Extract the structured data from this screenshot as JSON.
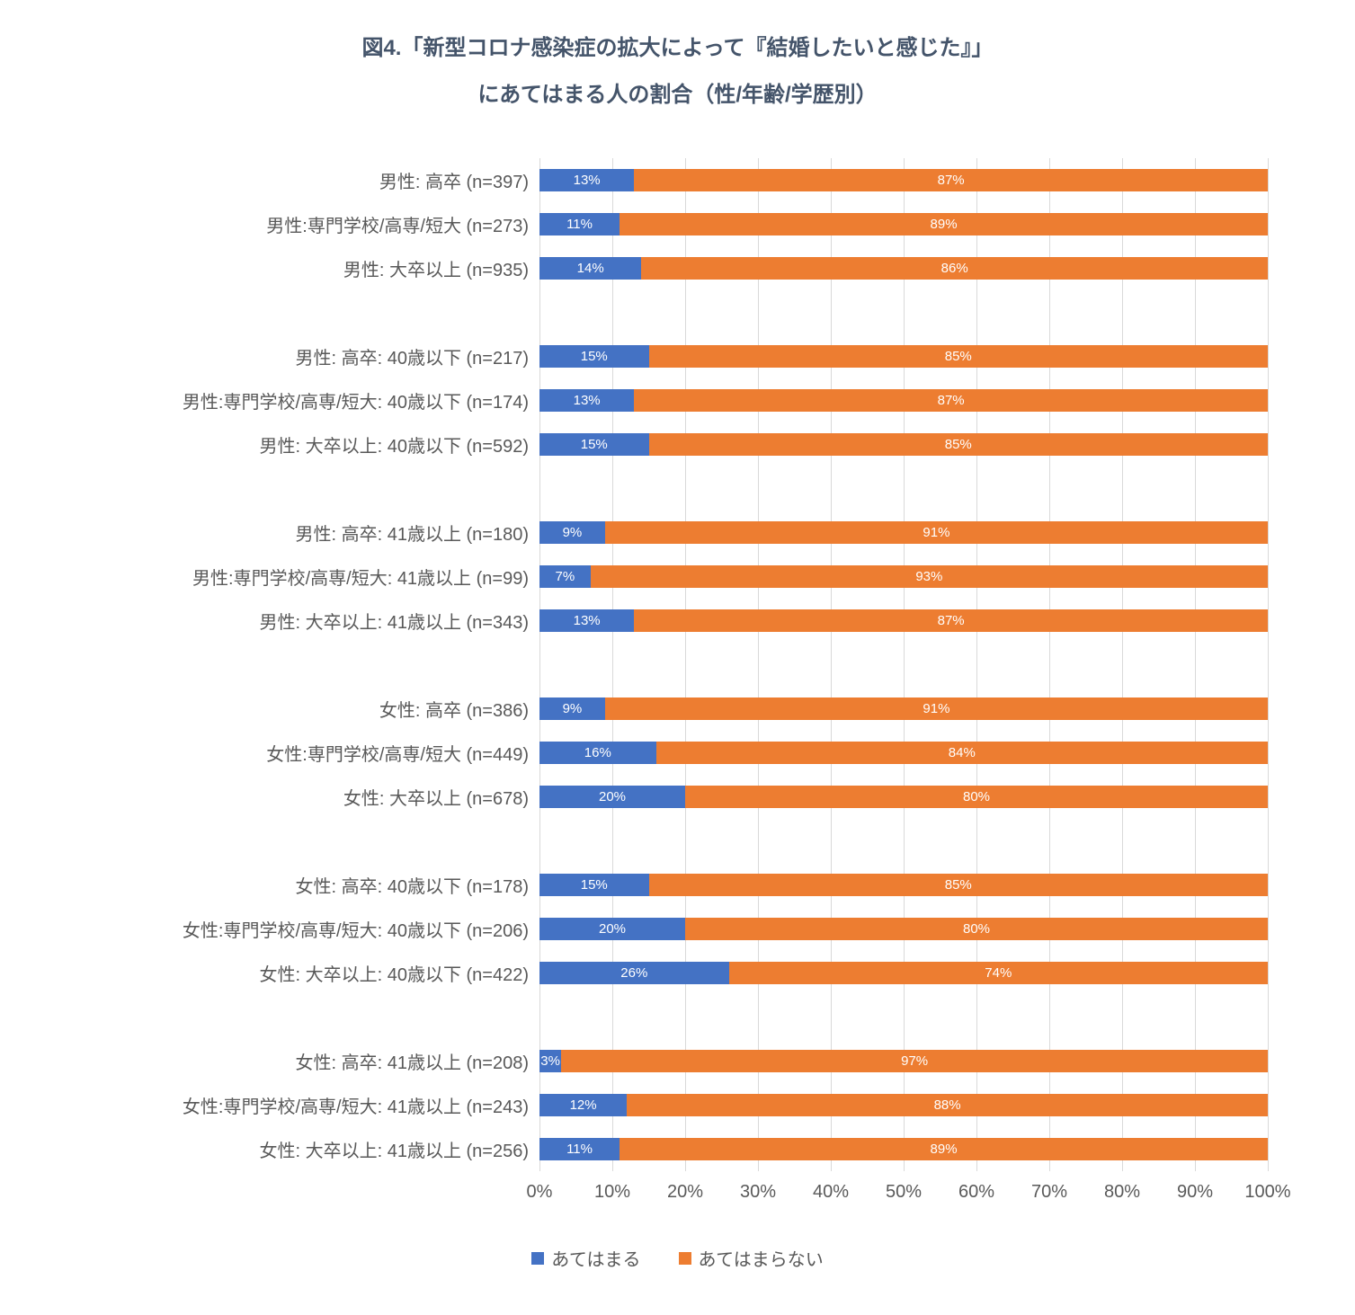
{
  "title": {
    "line1": "図4.「新型コロナ感染症の拡大によって『結婚したいと感じた』」",
    "line2": "にあてはまる人の割合（性/年齢/学歴別）"
  },
  "chart_data": {
    "type": "bar",
    "orientation": "horizontal",
    "stacked": true,
    "percent_total": 100,
    "series": [
      "あてはまる",
      "あてはまらない"
    ],
    "colors": [
      "#4472C4",
      "#ED7D31"
    ],
    "xlim": [
      0,
      100
    ],
    "x_ticks": [
      "0%",
      "10%",
      "20%",
      "30%",
      "40%",
      "50%",
      "60%",
      "70%",
      "80%",
      "90%",
      "100%"
    ],
    "grid": true,
    "legend_position": "bottom",
    "groups": [
      [
        {
          "label": "男性: 高卒 (n=397)",
          "values": [
            13,
            87
          ]
        },
        {
          "label": "男性:専門学校/高専/短大 (n=273)",
          "values": [
            11,
            89
          ]
        },
        {
          "label": "男性: 大卒以上 (n=935)",
          "values": [
            14,
            86
          ]
        }
      ],
      [
        {
          "label": "男性: 高卒: 40歳以下 (n=217)",
          "values": [
            15,
            85
          ]
        },
        {
          "label": "男性:専門学校/高専/短大: 40歳以下 (n=174)",
          "values": [
            13,
            87
          ]
        },
        {
          "label": "男性: 大卒以上: 40歳以下 (n=592)",
          "values": [
            15,
            85
          ]
        }
      ],
      [
        {
          "label": "男性: 高卒: 41歳以上 (n=180)",
          "values": [
            9,
            91
          ]
        },
        {
          "label": "男性:専門学校/高専/短大: 41歳以上 (n=99)",
          "values": [
            7,
            93
          ]
        },
        {
          "label": "男性: 大卒以上: 41歳以上 (n=343)",
          "values": [
            13,
            87
          ]
        }
      ],
      [
        {
          "label": "女性: 高卒 (n=386)",
          "values": [
            9,
            91
          ]
        },
        {
          "label": "女性:専門学校/高専/短大 (n=449)",
          "values": [
            16,
            84
          ]
        },
        {
          "label": "女性: 大卒以上 (n=678)",
          "values": [
            20,
            80
          ]
        }
      ],
      [
        {
          "label": "女性: 高卒: 40歳以下 (n=178)",
          "values": [
            15,
            85
          ]
        },
        {
          "label": "女性:専門学校/高専/短大: 40歳以下 (n=206)",
          "values": [
            20,
            80
          ]
        },
        {
          "label": "女性: 大卒以上: 40歳以下 (n=422)",
          "values": [
            26,
            74
          ]
        }
      ],
      [
        {
          "label": "女性: 高卒: 41歳以上 (n=208)",
          "values": [
            3,
            97
          ]
        },
        {
          "label": "女性:専門学校/高専/短大: 41歳以上 (n=243)",
          "values": [
            12,
            88
          ]
        },
        {
          "label": "女性: 大卒以上: 41歳以上 (n=256)",
          "values": [
            11,
            89
          ]
        }
      ]
    ]
  }
}
